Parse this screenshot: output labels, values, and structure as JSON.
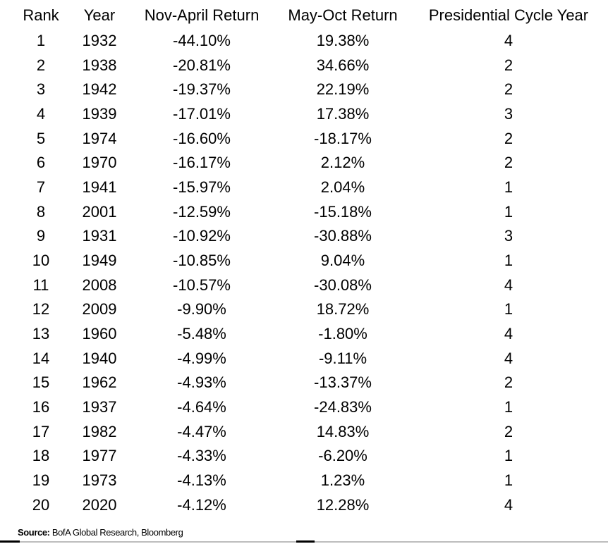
{
  "table": {
    "columns": [
      "Rank",
      "Year",
      "Nov-April Return",
      "May-Oct Return",
      "Presidential Cycle Year"
    ],
    "rows": [
      [
        "1",
        "1932",
        "-44.10%",
        "19.38%",
        "4"
      ],
      [
        "2",
        "1938",
        "-20.81%",
        "34.66%",
        "2"
      ],
      [
        "3",
        "1942",
        "-19.37%",
        "22.19%",
        "2"
      ],
      [
        "4",
        "1939",
        "-17.01%",
        "17.38%",
        "3"
      ],
      [
        "5",
        "1974",
        "-16.60%",
        "-18.17%",
        "2"
      ],
      [
        "6",
        "1970",
        "-16.17%",
        "2.12%",
        "2"
      ],
      [
        "7",
        "1941",
        "-15.97%",
        "2.04%",
        "1"
      ],
      [
        "8",
        "2001",
        "-12.59%",
        "-15.18%",
        "1"
      ],
      [
        "9",
        "1931",
        "-10.92%",
        "-30.88%",
        "3"
      ],
      [
        "10",
        "1949",
        "-10.85%",
        "9.04%",
        "1"
      ],
      [
        "11",
        "2008",
        "-10.57%",
        "-30.08%",
        "4"
      ],
      [
        "12",
        "2009",
        "-9.90%",
        "18.72%",
        "1"
      ],
      [
        "13",
        "1960",
        "-5.48%",
        "-1.80%",
        "4"
      ],
      [
        "14",
        "1940",
        "-4.99%",
        "-9.11%",
        "4"
      ],
      [
        "15",
        "1962",
        "-4.93%",
        "-13.37%",
        "2"
      ],
      [
        "16",
        "1937",
        "-4.64%",
        "-24.83%",
        "1"
      ],
      [
        "17",
        "1982",
        "-4.47%",
        "14.83%",
        "2"
      ],
      [
        "18",
        "1977",
        "-4.33%",
        "-6.20%",
        "1"
      ],
      [
        "19",
        "1973",
        "-4.13%",
        "1.23%",
        "1"
      ],
      [
        "20",
        "2020",
        "-4.12%",
        "12.28%",
        "4"
      ]
    ]
  },
  "source": {
    "label": "Source:",
    "text": "BofA Global Research, Bloomberg"
  }
}
